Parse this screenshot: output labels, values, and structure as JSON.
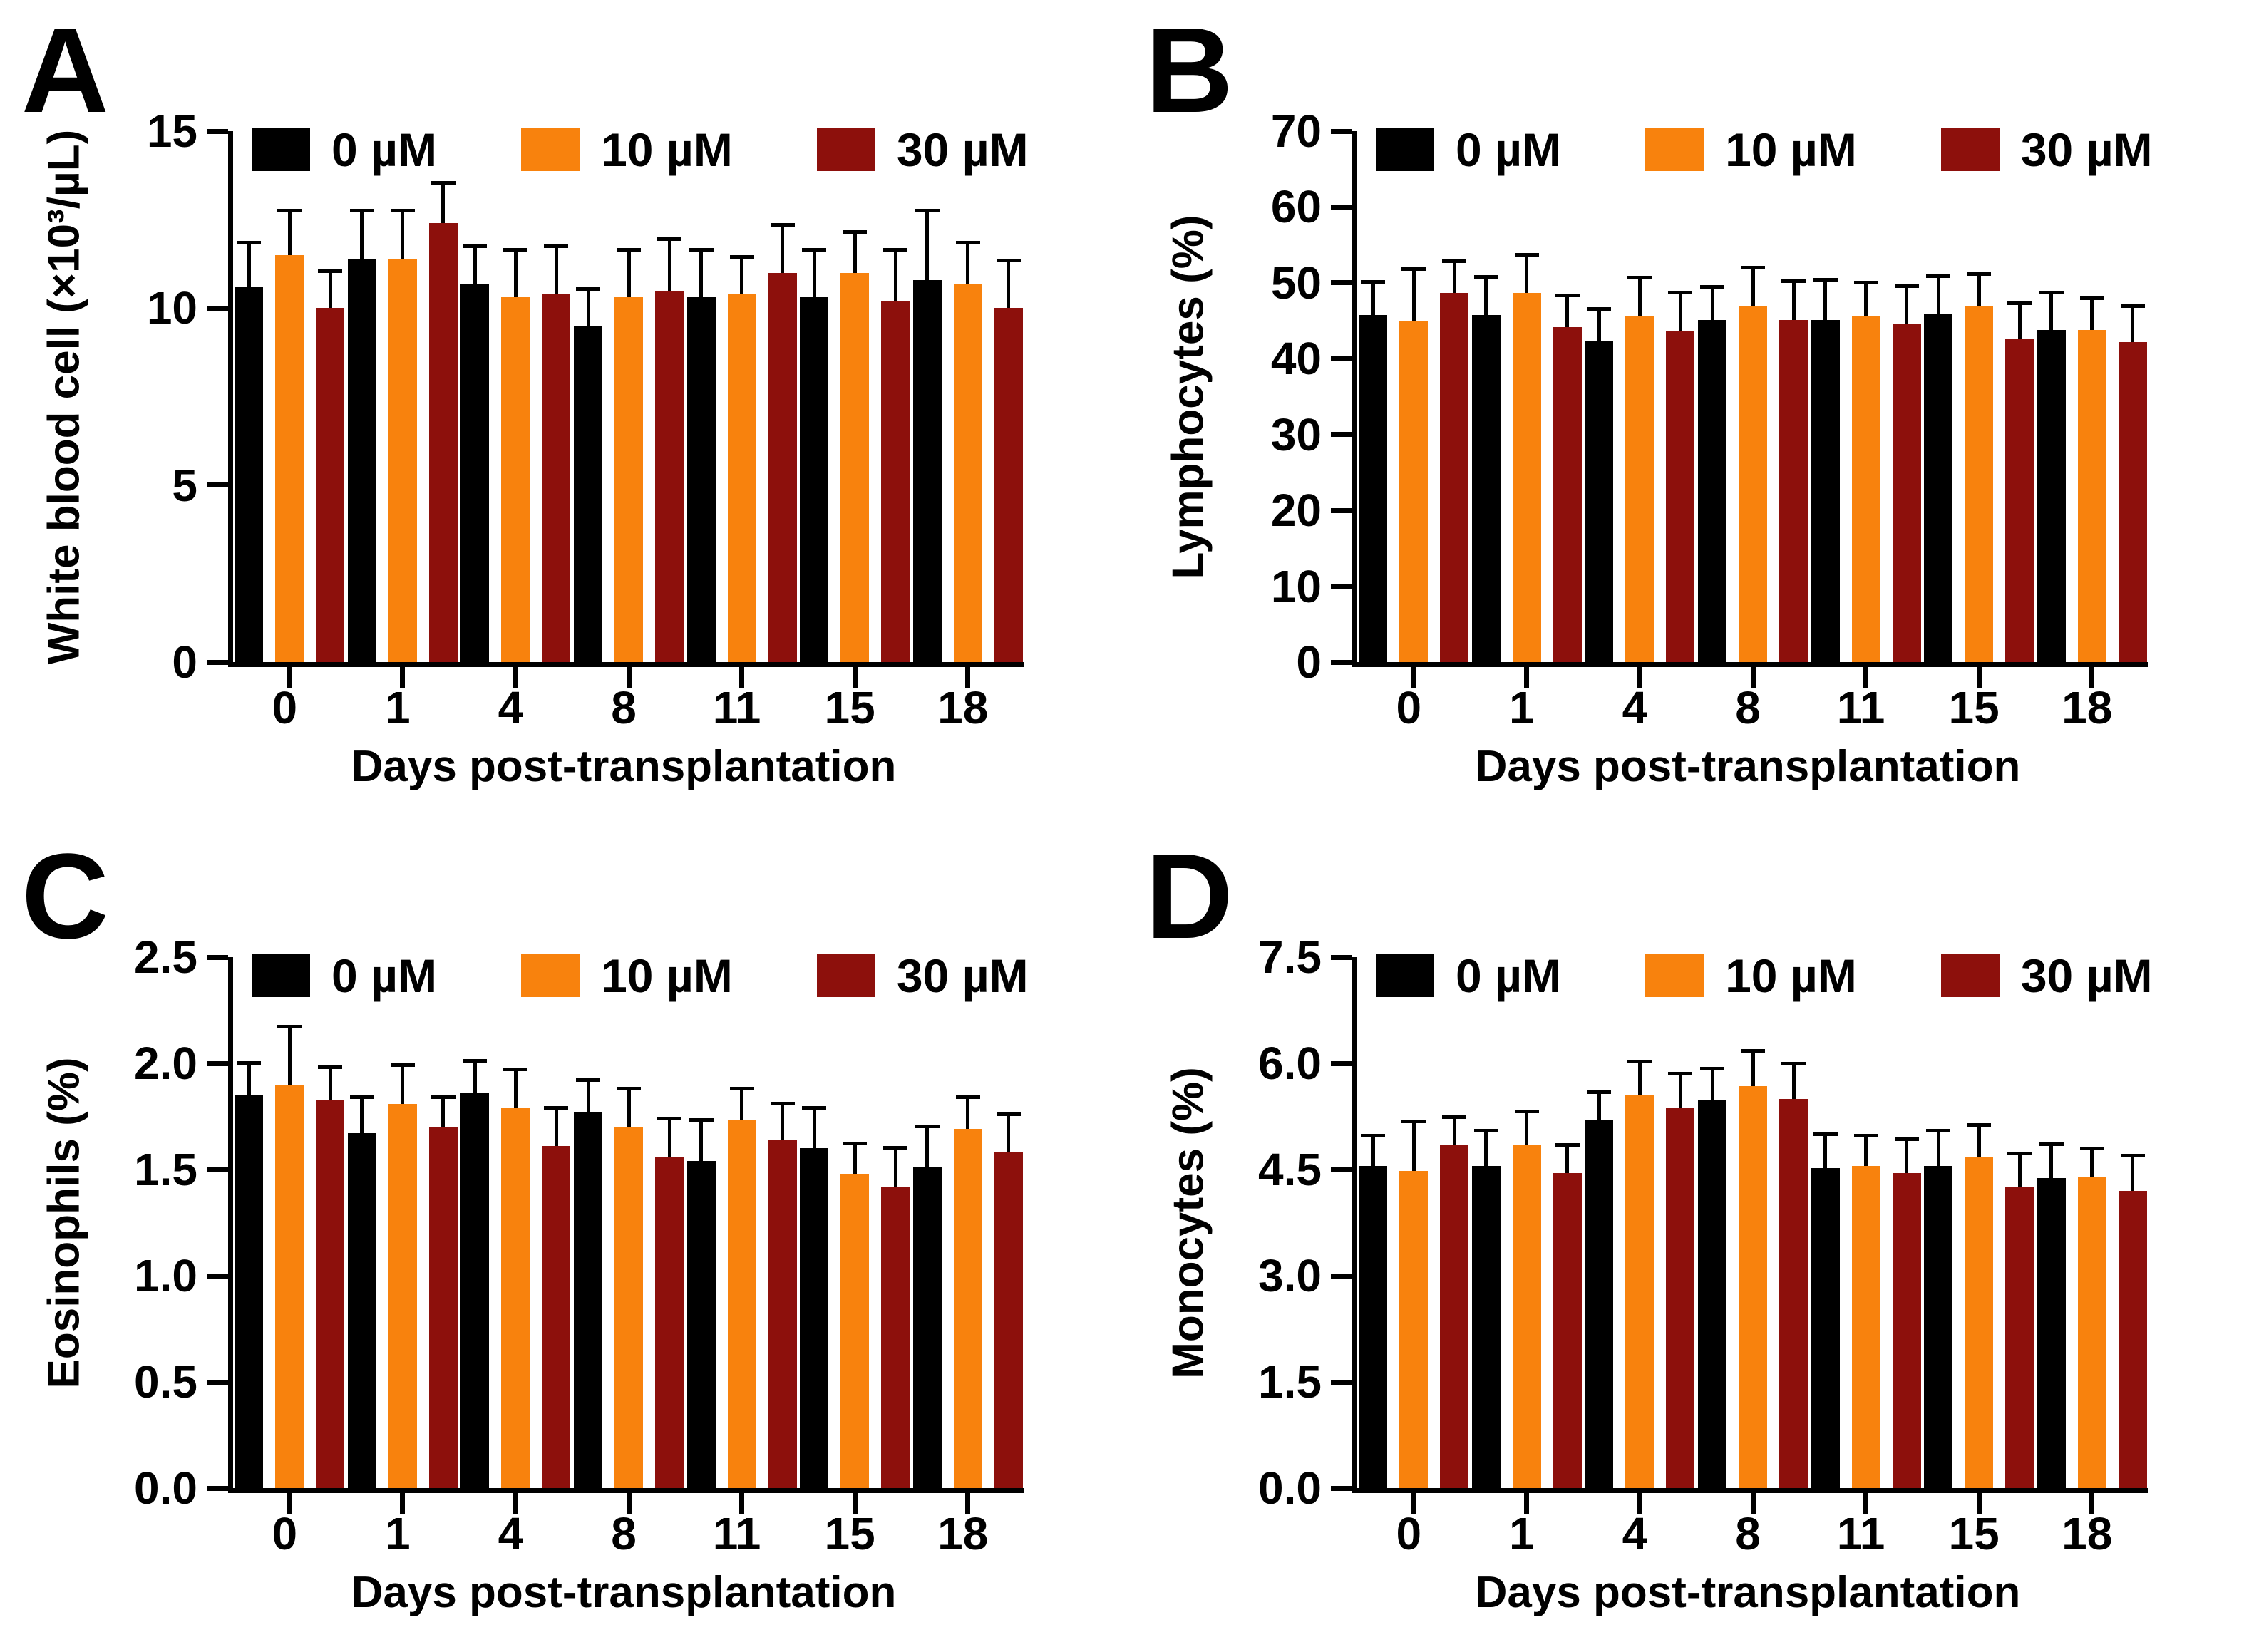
{
  "figure": {
    "xlabel": "Days post-transplantation",
    "categories": [
      "0",
      "1",
      "4",
      "8",
      "11",
      "15",
      "18"
    ],
    "legend": [
      {
        "label": "0 µM",
        "color": "#000000"
      },
      {
        "label": "10 µM",
        "color": "#F8820D"
      },
      {
        "label": "30 µM",
        "color": "#8D100C"
      }
    ]
  },
  "chart_data": [
    {
      "type": "bar",
      "panel": "A",
      "ylabel": "White blood cell (×10³/µL)",
      "xlabel": "Days post-transplantation",
      "categories": [
        "0",
        "1",
        "4",
        "8",
        "11",
        "15",
        "18"
      ],
      "ylim": [
        0,
        15
      ],
      "yticks": [
        "0",
        "5",
        "10",
        "15"
      ],
      "grid": false,
      "legend_position": "top-inside",
      "series": [
        {
          "name": "0 µM",
          "color": "#000000",
          "values": [
            10.6,
            11.4,
            10.7,
            9.5,
            10.3,
            10.3,
            10.8
          ],
          "errors": [
            1.3,
            1.4,
            1.1,
            1.1,
            1.4,
            1.4,
            2.0
          ]
        },
        {
          "name": "10 µM",
          "color": "#F8820D",
          "values": [
            11.5,
            11.4,
            10.3,
            10.3,
            10.4,
            11.0,
            10.7
          ],
          "errors": [
            1.3,
            1.4,
            1.4,
            1.4,
            1.1,
            1.2,
            1.2
          ]
        },
        {
          "name": "30 µM",
          "color": "#8D100C",
          "values": [
            10.0,
            12.4,
            10.4,
            10.5,
            11.0,
            10.2,
            10.0
          ],
          "errors": [
            1.1,
            1.2,
            1.4,
            1.5,
            1.4,
            1.5,
            1.4
          ]
        }
      ]
    },
    {
      "type": "bar",
      "panel": "B",
      "ylabel": "Lymphocytes (%)",
      "xlabel": "Days post-transplantation",
      "categories": [
        "0",
        "1",
        "4",
        "8",
        "11",
        "15",
        "18"
      ],
      "ylim": [
        0,
        70
      ],
      "yticks": [
        "0",
        "10",
        "20",
        "30",
        "40",
        "50",
        "60",
        "70"
      ],
      "grid": false,
      "legend_position": "top-inside",
      "series": [
        {
          "name": "0 µM",
          "color": "#000000",
          "values": [
            45.8,
            45.8,
            42.3,
            45.1,
            45.1,
            45.9,
            43.8
          ],
          "errors": [
            4.6,
            5.2,
            4.5,
            4.6,
            5.5,
            5.2,
            5.2
          ]
        },
        {
          "name": "10 µM",
          "color": "#F8820D",
          "values": [
            44.9,
            48.7,
            45.6,
            46.9,
            45.6,
            47.0,
            43.8
          ],
          "errors": [
            7.2,
            5.2,
            5.3,
            5.3,
            4.7,
            4.4,
            4.4
          ]
        },
        {
          "name": "30 µM",
          "color": "#8D100C",
          "values": [
            48.7,
            44.2,
            43.7,
            45.1,
            44.5,
            42.7,
            42.2
          ],
          "errors": [
            4.4,
            4.4,
            5.3,
            5.4,
            5.3,
            4.8,
            5.0
          ]
        }
      ]
    },
    {
      "type": "bar",
      "panel": "C",
      "ylabel": "Eosinophils (%)",
      "xlabel": "Days post-transplantation",
      "categories": [
        "0",
        "1",
        "4",
        "8",
        "11",
        "15",
        "18"
      ],
      "ylim": [
        0,
        2.5
      ],
      "yticks": [
        "0.0",
        "0.5",
        "1.0",
        "1.5",
        "2.0",
        "2.5"
      ],
      "grid": false,
      "legend_position": "top-inside",
      "series": [
        {
          "name": "0 µM",
          "color": "#000000",
          "values": [
            1.85,
            1.67,
            1.86,
            1.77,
            1.54,
            1.6,
            1.51
          ],
          "errors": [
            0.16,
            0.18,
            0.16,
            0.16,
            0.2,
            0.2,
            0.2
          ]
        },
        {
          "name": "10 µM",
          "color": "#F8820D",
          "values": [
            1.9,
            1.81,
            1.79,
            1.7,
            1.73,
            1.48,
            1.69
          ],
          "errors": [
            0.28,
            0.19,
            0.19,
            0.19,
            0.16,
            0.15,
            0.16
          ]
        },
        {
          "name": "30 µM",
          "color": "#8D100C",
          "values": [
            1.83,
            1.7,
            1.61,
            1.56,
            1.64,
            1.42,
            1.58
          ],
          "errors": [
            0.16,
            0.15,
            0.19,
            0.19,
            0.18,
            0.19,
            0.19
          ]
        }
      ]
    },
    {
      "type": "bar",
      "panel": "D",
      "ylabel": "Monocytes (%)",
      "xlabel": "Days post-transplantation",
      "categories": [
        "0",
        "1",
        "4",
        "8",
        "11",
        "15",
        "18"
      ],
      "ylim": [
        0,
        7.5
      ],
      "yticks": [
        "0.0",
        "1.5",
        "3.0",
        "4.5",
        "6.0",
        "7.5"
      ],
      "grid": false,
      "legend_position": "top-inside",
      "series": [
        {
          "name": "0 µM",
          "color": "#000000",
          "values": [
            4.55,
            4.55,
            5.2,
            5.48,
            4.52,
            4.55,
            4.38
          ],
          "errors": [
            0.45,
            0.52,
            0.42,
            0.47,
            0.5,
            0.52,
            0.5
          ]
        },
        {
          "name": "10 µM",
          "color": "#F8820D",
          "values": [
            4.48,
            4.85,
            5.55,
            5.68,
            4.55,
            4.68,
            4.4
          ],
          "errors": [
            0.72,
            0.5,
            0.5,
            0.52,
            0.45,
            0.47,
            0.42
          ]
        },
        {
          "name": "30 µM",
          "color": "#8D100C",
          "values": [
            4.85,
            4.45,
            5.38,
            5.5,
            4.45,
            4.25,
            4.2
          ],
          "errors": [
            0.42,
            0.42,
            0.5,
            0.52,
            0.5,
            0.5,
            0.52
          ]
        }
      ]
    }
  ]
}
